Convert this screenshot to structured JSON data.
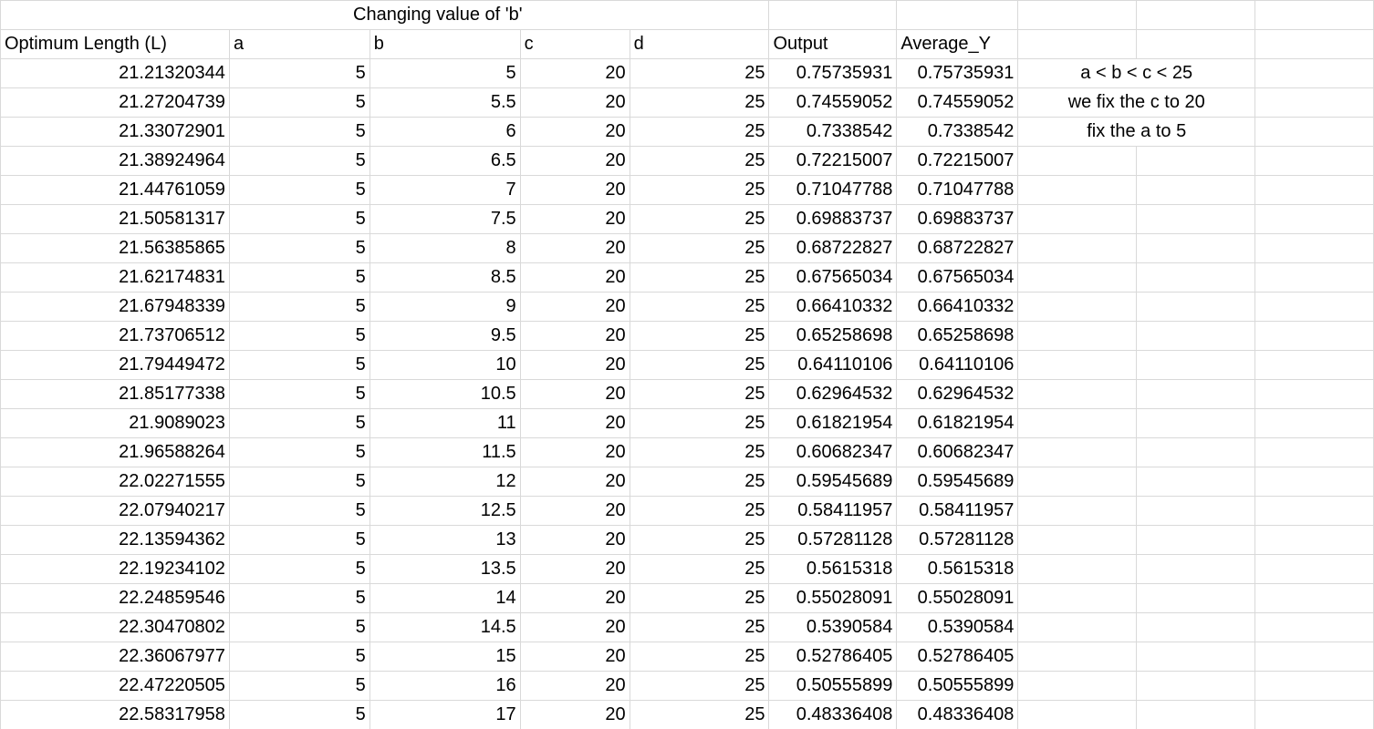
{
  "title_cell": "Changing value of 'b'",
  "headers": [
    "Optimum Length (L)",
    "a",
    "b",
    "c",
    "d",
    "Output",
    "Average_Y"
  ],
  "notes": [
    "a < b < c < 25",
    "we fix the c to 20",
    "fix the a to 5"
  ],
  "rows": [
    [
      "21.21320344",
      "5",
      "5",
      "20",
      "25",
      "0.75735931",
      "0.75735931"
    ],
    [
      "21.27204739",
      "5",
      "5.5",
      "20",
      "25",
      "0.74559052",
      "0.74559052"
    ],
    [
      "21.33072901",
      "5",
      "6",
      "20",
      "25",
      "0.7338542",
      "0.7338542"
    ],
    [
      "21.38924964",
      "5",
      "6.5",
      "20",
      "25",
      "0.72215007",
      "0.72215007"
    ],
    [
      "21.44761059",
      "5",
      "7",
      "20",
      "25",
      "0.71047788",
      "0.71047788"
    ],
    [
      "21.50581317",
      "5",
      "7.5",
      "20",
      "25",
      "0.69883737",
      "0.69883737"
    ],
    [
      "21.56385865",
      "5",
      "8",
      "20",
      "25",
      "0.68722827",
      "0.68722827"
    ],
    [
      "21.62174831",
      "5",
      "8.5",
      "20",
      "25",
      "0.67565034",
      "0.67565034"
    ],
    [
      "21.67948339",
      "5",
      "9",
      "20",
      "25",
      "0.66410332",
      "0.66410332"
    ],
    [
      "21.73706512",
      "5",
      "9.5",
      "20",
      "25",
      "0.65258698",
      "0.65258698"
    ],
    [
      "21.79449472",
      "5",
      "10",
      "20",
      "25",
      "0.64110106",
      "0.64110106"
    ],
    [
      "21.85177338",
      "5",
      "10.5",
      "20",
      "25",
      "0.62964532",
      "0.62964532"
    ],
    [
      "21.9089023",
      "5",
      "11",
      "20",
      "25",
      "0.61821954",
      "0.61821954"
    ],
    [
      "21.96588264",
      "5",
      "11.5",
      "20",
      "25",
      "0.60682347",
      "0.60682347"
    ],
    [
      "22.02271555",
      "5",
      "12",
      "20",
      "25",
      "0.59545689",
      "0.59545689"
    ],
    [
      "22.07940217",
      "5",
      "12.5",
      "20",
      "25",
      "0.58411957",
      "0.58411957"
    ],
    [
      "22.13594362",
      "5",
      "13",
      "20",
      "25",
      "0.57281128",
      "0.57281128"
    ],
    [
      "22.19234102",
      "5",
      "13.5",
      "20",
      "25",
      "0.5615318",
      "0.5615318"
    ],
    [
      "22.24859546",
      "5",
      "14",
      "20",
      "25",
      "0.55028091",
      "0.55028091"
    ],
    [
      "22.30470802",
      "5",
      "14.5",
      "20",
      "25",
      "0.5390584",
      "0.5390584"
    ],
    [
      "22.36067977",
      "5",
      "15",
      "20",
      "25",
      "0.52786405",
      "0.52786405"
    ],
    [
      "22.47220505",
      "5",
      "16",
      "20",
      "25",
      "0.50555899",
      "0.50555899"
    ],
    [
      "22.58317958",
      "5",
      "17",
      "20",
      "25",
      "0.48336408",
      "0.48336408"
    ]
  ]
}
